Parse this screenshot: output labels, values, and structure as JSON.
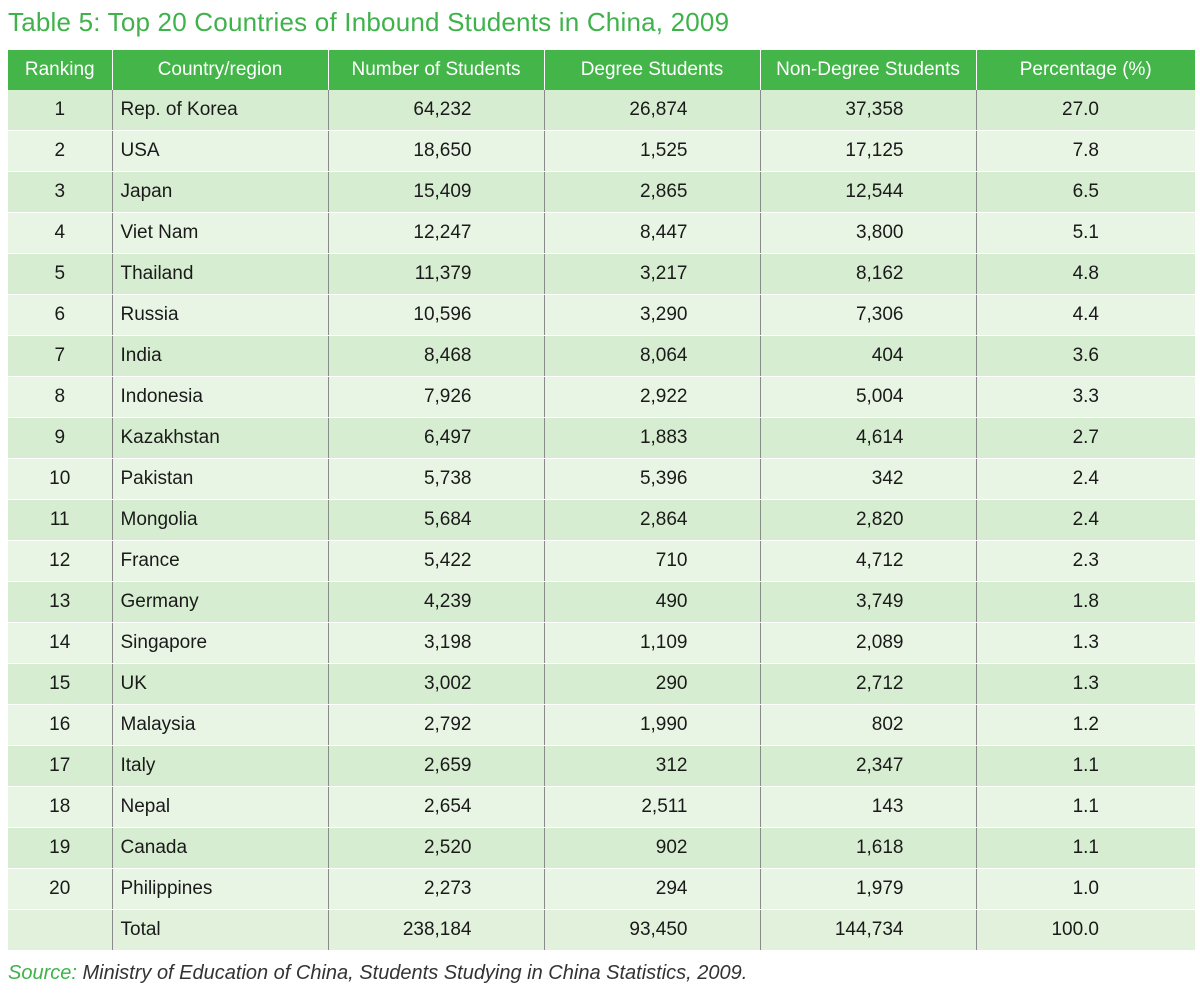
{
  "title": "Table 5: Top 20 Countries of Inbound Students in China, 2009",
  "colors": {
    "accent_green": "#43b549",
    "title_green": "#3fb24b",
    "row_odd": "#d7edd1",
    "row_even": "#e9f5e4"
  },
  "chart_data": {
    "type": "table",
    "columns": [
      "Ranking",
      "Country/region",
      "Number of Students",
      "Degree Students",
      "Non-Degree Students",
      "Percentage (%)"
    ],
    "rows": [
      [
        "1",
        "Rep. of Korea",
        "64,232",
        "26,874",
        "37,358",
        "27.0"
      ],
      [
        "2",
        "USA",
        "18,650",
        "1,525",
        "17,125",
        "7.8"
      ],
      [
        "3",
        "Japan",
        "15,409",
        "2,865",
        "12,544",
        "6.5"
      ],
      [
        "4",
        "Viet Nam",
        "12,247",
        "8,447",
        "3,800",
        "5.1"
      ],
      [
        "5",
        "Thailand",
        "11,379",
        "3,217",
        "8,162",
        "4.8"
      ],
      [
        "6",
        "Russia",
        "10,596",
        "3,290",
        "7,306",
        "4.4"
      ],
      [
        "7",
        "India",
        "8,468",
        "8,064",
        "404",
        "3.6"
      ],
      [
        "8",
        "Indonesia",
        "7,926",
        "2,922",
        "5,004",
        "3.3"
      ],
      [
        "9",
        "Kazakhstan",
        "6,497",
        "1,883",
        "4,614",
        "2.7"
      ],
      [
        "10",
        "Pakistan",
        "5,738",
        "5,396",
        "342",
        "2.4"
      ],
      [
        "11",
        "Mongolia",
        "5,684",
        "2,864",
        "2,820",
        "2.4"
      ],
      [
        "12",
        "France",
        "5,422",
        "710",
        "4,712",
        "2.3"
      ],
      [
        "13",
        "Germany",
        "4,239",
        "490",
        "3,749",
        "1.8"
      ],
      [
        "14",
        "Singapore",
        "3,198",
        "1,109",
        "2,089",
        "1.3"
      ],
      [
        "15",
        "UK",
        "3,002",
        "290",
        "2,712",
        "1.3"
      ],
      [
        "16",
        "Malaysia",
        "2,792",
        "1,990",
        "802",
        "1.2"
      ],
      [
        "17",
        "Italy",
        "2,659",
        "312",
        "2,347",
        "1.1"
      ],
      [
        "18",
        "Nepal",
        "2,654",
        "2,511",
        "143",
        "1.1"
      ],
      [
        "19",
        "Canada",
        "2,520",
        "902",
        "1,618",
        "1.1"
      ],
      [
        "20",
        "Philippines",
        "2,273",
        "294",
        "1,979",
        "1.0"
      ]
    ],
    "total": [
      "",
      "Total",
      "238,184",
      "93,450",
      "144,734",
      "100.0"
    ]
  },
  "source": {
    "label": "Source:",
    "text": " Ministry of Education of China, Students Studying in China Statistics, 2009."
  }
}
